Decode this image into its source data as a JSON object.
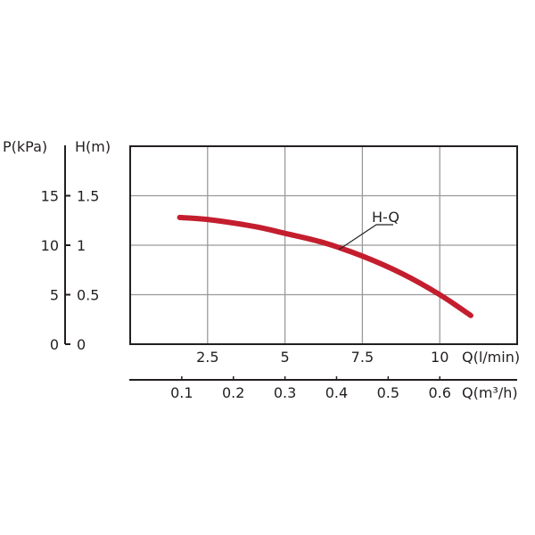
{
  "chart_data": {
    "type": "line",
    "xlabel": "Q(l/min)",
    "xlabel2": "Q(m³/h)",
    "ylabel": "H(m)",
    "ylabel2": "P(kPa)",
    "xlim": [
      0,
      12.5
    ],
    "ylim": [
      0,
      2.0
    ],
    "x_ticks": [
      2.5,
      5,
      7.5,
      10
    ],
    "x_tick_labels": [
      "2.5",
      "5",
      "7.5",
      "10"
    ],
    "x2_ticks": [
      0.1,
      0.2,
      0.3,
      0.4,
      0.5,
      0.6
    ],
    "x2_tick_labels": [
      "0.1",
      "0.2",
      "0.3",
      "0.4",
      "0.5",
      "0.6"
    ],
    "y_ticks": [
      0,
      0.5,
      1,
      1.5
    ],
    "y_tick_labels": [
      "0",
      "0.5",
      "1",
      "1.5"
    ],
    "y2_tick_labels": [
      "0",
      "5",
      "10",
      "15"
    ],
    "grid": true,
    "series": [
      {
        "name": "H-Q",
        "color": "#c41e2e",
        "x": [
          1.6,
          2.5,
          4.0,
          5.0,
          6.2,
          7.5,
          8.8,
          10.0,
          11.0
        ],
        "y": [
          1.28,
          1.26,
          1.19,
          1.12,
          1.03,
          0.89,
          0.71,
          0.5,
          0.29
        ]
      }
    ]
  }
}
